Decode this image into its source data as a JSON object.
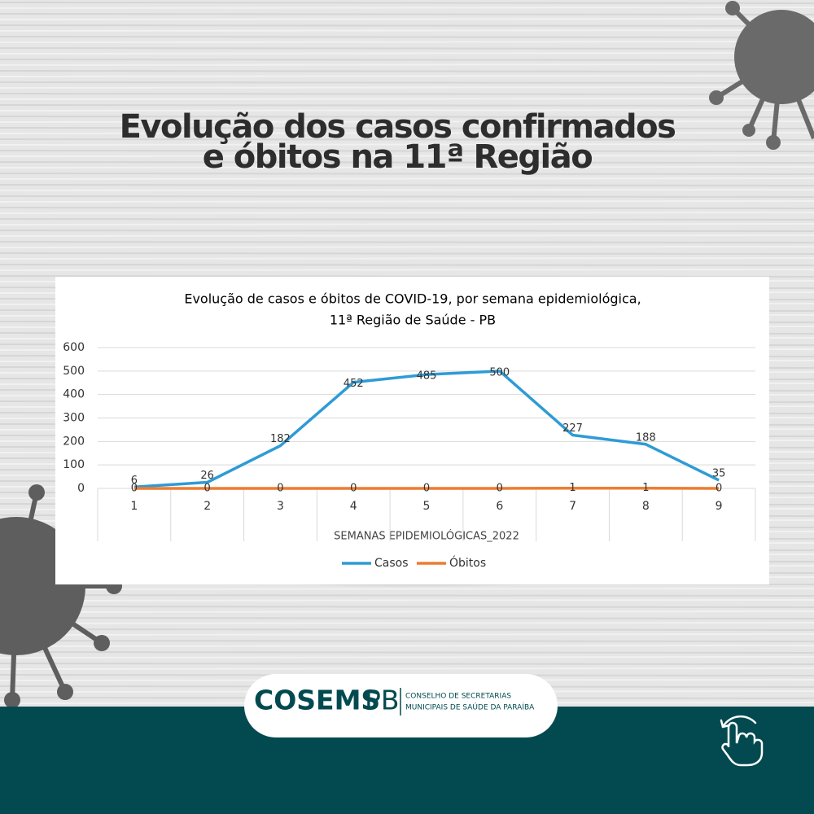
{
  "header": {
    "title_lines": [
      "Evolução dos casos confirmados",
      "e óbitos na 11ª Região"
    ]
  },
  "chart_data": {
    "type": "line",
    "title": [
      "Evolução de casos e óbitos de COVID-19, por semana epidemiológica,",
      "11ª Região de Saúde - PB"
    ],
    "x_label": "SEMANAS EPIDEMIOLÓGICAS_2022",
    "categories": [
      "1",
      "2",
      "3",
      "4",
      "5",
      "6",
      "7",
      "8",
      "9"
    ],
    "series": [
      {
        "name": "Casos",
        "color": "#2e9bd6",
        "values": [
          6,
          26,
          182,
          452,
          485,
          500,
          227,
          188,
          35
        ]
      },
      {
        "name": "Óbitos",
        "color": "#ed7d31",
        "values": [
          0,
          0,
          0,
          0,
          0,
          0,
          1,
          1,
          0
        ]
      }
    ],
    "ylim": [
      0,
      600
    ],
    "yticks": [
      0,
      100,
      200,
      300,
      400,
      500,
      600
    ],
    "grid": true,
    "legend": "bottom"
  },
  "footer": {
    "logo_main": "COSEMS",
    "logo_suffix": "PB",
    "logo_lines": [
      "CONSELHO DE SECRETARIAS",
      "MUNICIPAIS DE SAÚDE DA PARAÍBA"
    ]
  }
}
